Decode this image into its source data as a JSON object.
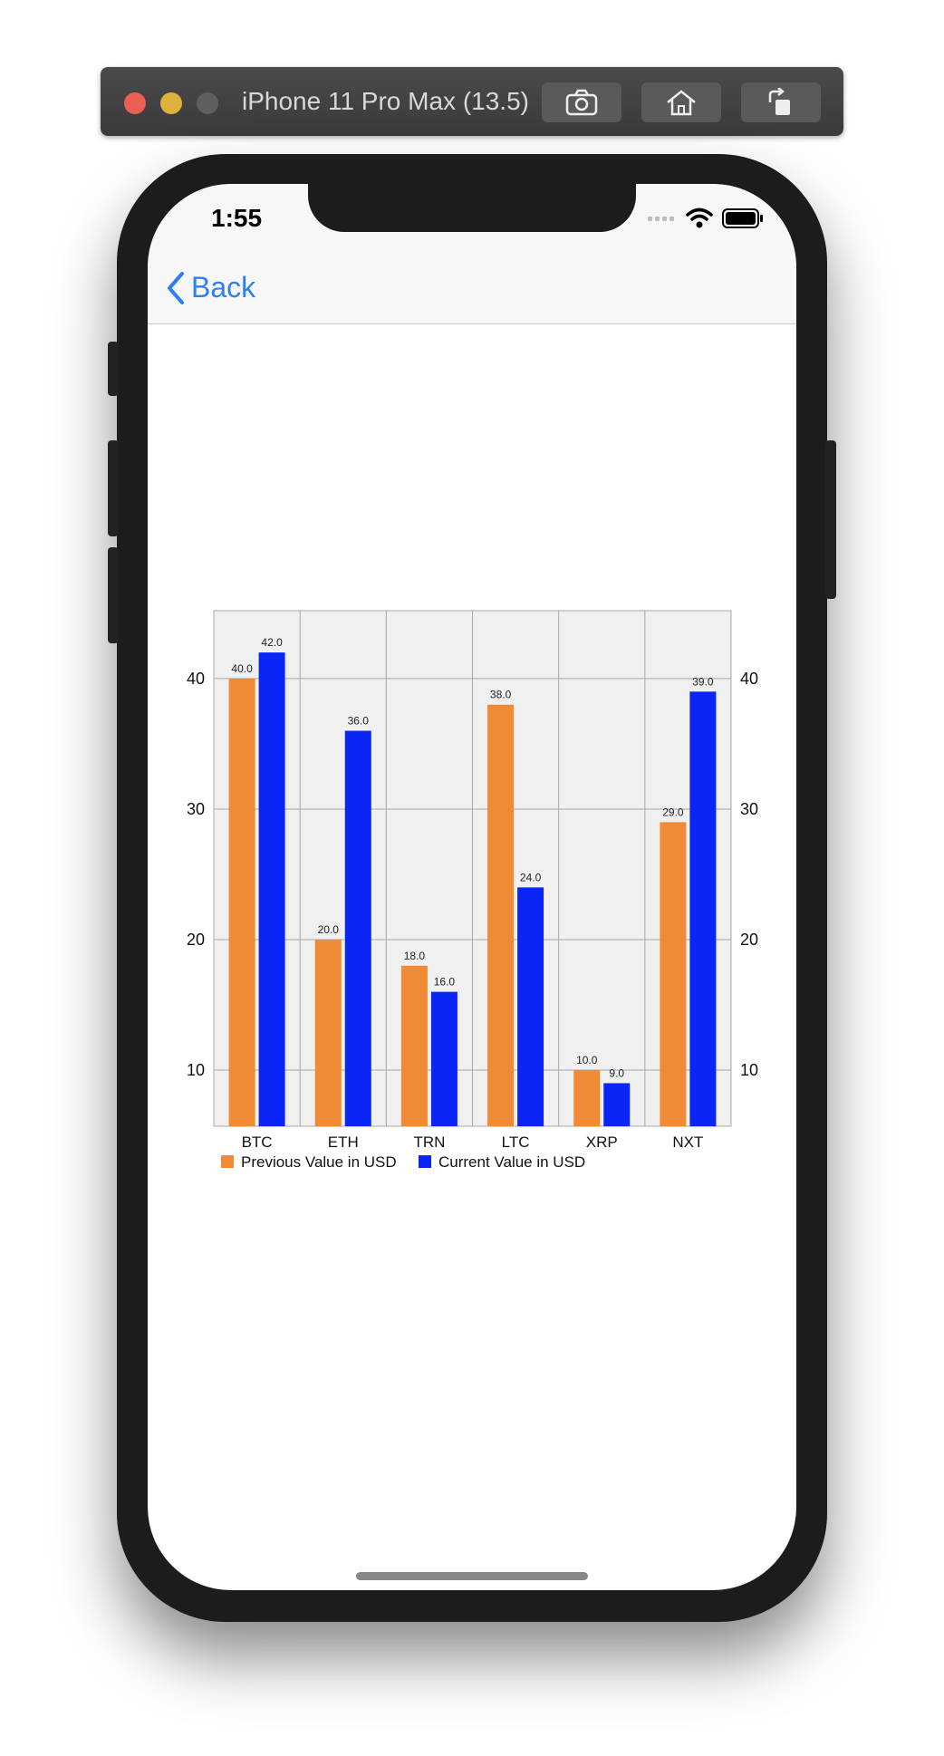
{
  "simulator": {
    "title": "iPhone 11 Pro Max (13.5)",
    "buttons": [
      "screenshot",
      "home",
      "rotate"
    ]
  },
  "status_bar": {
    "time": "1:55"
  },
  "navbar": {
    "back_label": "Back"
  },
  "colors": {
    "previous": "#f08a35",
    "current": "#0a25f5",
    "plot_bg": "#f0f0f0",
    "grid": "#a8a8a8",
    "ios_blue": "#2f7ff0"
  },
  "chart_data": {
    "type": "bar",
    "categories": [
      "BTC",
      "ETH",
      "TRN",
      "LTC",
      "XRP",
      "NXT"
    ],
    "series": [
      {
        "name": "Previous Value in USD",
        "values": [
          40.0,
          20.0,
          18.0,
          38.0,
          10.0,
          29.0
        ],
        "labels": [
          "40.0",
          "20.0",
          "18.0",
          "38.0",
          "10.0",
          "29.0"
        ]
      },
      {
        "name": "Current Value in USD",
        "values": [
          42.0,
          36.0,
          16.0,
          24.0,
          9.0,
          39.0
        ],
        "labels": [
          "42.0",
          "36.0",
          "16.0",
          "24.0",
          "9.0",
          "39.0"
        ]
      }
    ],
    "y_ticks": [
      10,
      20,
      30,
      40
    ],
    "y_tick_labels": [
      "10",
      "20",
      "30",
      "40"
    ],
    "ylim": [
      5.7,
      45.2
    ],
    "grid": true,
    "legend_position": "bottom-left",
    "left_axis_labels": true,
    "right_axis_labels": true
  }
}
